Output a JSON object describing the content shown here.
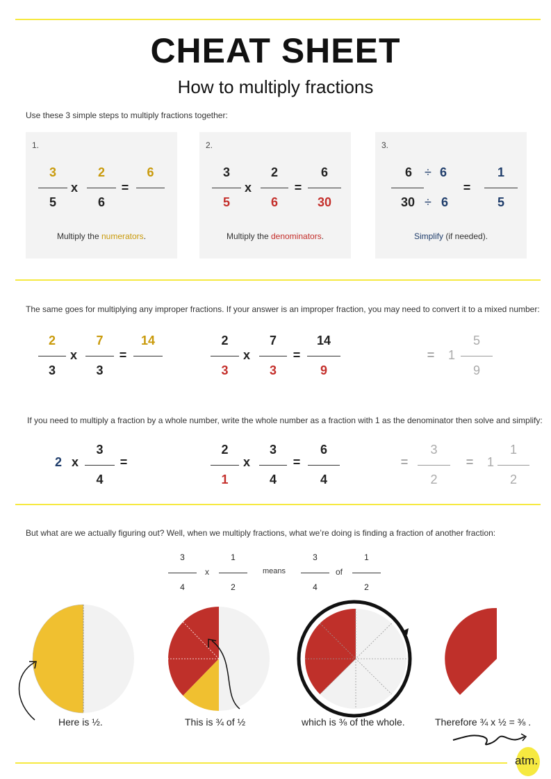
{
  "header": {
    "title": "CHEAT SHEET",
    "subtitle": "How to multiply fractions"
  },
  "intro": "Use these 3 simple steps to multiply fractions together:",
  "ops": {
    "times": "x",
    "equals": "=",
    "divide": "÷",
    "means": "means",
    "of": "of"
  },
  "steps": [
    {
      "label": "1.",
      "pre": "Multiply the ",
      "em": "numerators",
      "post": ".",
      "f1": {
        "n": "3",
        "d": "5"
      },
      "f2": {
        "n": "2",
        "d": "6"
      },
      "f3": {
        "n": "6",
        "d": ""
      }
    },
    {
      "label": "2.",
      "pre": "Multiply the ",
      "em": "denominators",
      "post": ".",
      "f1": {
        "n": "3",
        "d": "5"
      },
      "f2": {
        "n": "2",
        "d": "6"
      },
      "f3": {
        "n": "6",
        "d": "30"
      }
    },
    {
      "label": "3.",
      "pre": "",
      "em": "Simplify",
      "post": " (if needed).",
      "num": "6",
      "num_div": "6",
      "den": "30",
      "den_div": "6",
      "result": {
        "n": "1",
        "d": "5"
      }
    }
  ],
  "improper": {
    "text": "The same goes for multiplying any improper fractions. If your answer is an improper fraction, you may need to convert it to a mixed number:",
    "a": {
      "f1": {
        "n": "2",
        "d": "3"
      },
      "f2": {
        "n": "7",
        "d": "3"
      },
      "f3": {
        "n": "14",
        "d": ""
      }
    },
    "b": {
      "f1": {
        "n": "2",
        "d": "3"
      },
      "f2": {
        "n": "7",
        "d": "3"
      },
      "f3": {
        "n": "14",
        "d": "9"
      }
    },
    "c": {
      "whole": "1",
      "f": {
        "n": "5",
        "d": "9"
      }
    }
  },
  "whole": {
    "text": "If you need to multiply a fraction by a whole number, write the whole number as a fraction with 1 as the denominator then solve and simplify:",
    "a": {
      "w": "2",
      "f": {
        "n": "3",
        "d": "4"
      }
    },
    "b": {
      "f1": {
        "n": "2",
        "d": "1"
      },
      "f2": {
        "n": "3",
        "d": "4"
      },
      "f3": {
        "n": "6",
        "d": "4"
      }
    },
    "c": {
      "f": {
        "n": "3",
        "d": "2"
      },
      "whole": "1",
      "f2": {
        "n": "1",
        "d": "2"
      }
    }
  },
  "visual": {
    "text": "But what are we actually figuring out? Well, when we multiply fractions, what we’re doing is finding a fraction of another fraction:",
    "f1": {
      "n": "3",
      "d": "4"
    },
    "f2": {
      "n": "1",
      "d": "2"
    },
    "f3": {
      "n": "3",
      "d": "4"
    },
    "f4": {
      "n": "1",
      "d": "2"
    },
    "captions": [
      "Here is ½.",
      "This is ¾ of ½",
      "which is ⅜ of the whole.",
      "Therefore ¾ x ½ = ⅜ ."
    ]
  },
  "logo": "atm.",
  "colors": {
    "accent_yellow": "#f6e940",
    "numerator": "#c99a0b",
    "denominator": "#c42f2b",
    "simplify": "#1f3d6b",
    "pie_yellow": "#f0c030",
    "pie_red": "#bf302a",
    "pie_gray": "#f2f2f2"
  }
}
